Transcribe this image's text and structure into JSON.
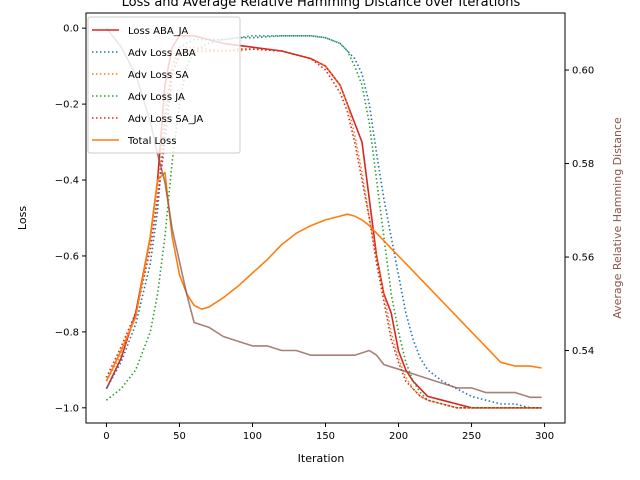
{
  "chart_data": {
    "type": "line",
    "title": "Loss and Average Relative Hamming Distance over Iterations",
    "xlabel": "Iteration",
    "ylabel": "Loss",
    "y2label": "Average Relative Hamming Distance",
    "xlim": [
      -14,
      314
    ],
    "ylim": [
      -1.04,
      0.04
    ],
    "y2lim": [
      0.5245,
      0.6122
    ],
    "xticks": [
      0,
      50,
      100,
      150,
      200,
      250,
      300
    ],
    "yticks": [
      -1.0,
      -0.8,
      -0.6,
      -0.4,
      -0.2,
      0.0
    ],
    "ytick_labels": [
      "−1.0",
      "−0.8",
      "−0.6",
      "−0.4",
      "−0.2",
      "0.0"
    ],
    "y2ticks": [
      0.54,
      0.56,
      0.58,
      0.6
    ],
    "legend_position": "upper-left",
    "colors": {
      "loss_aba_ja": "#d62728",
      "adv_aba": "#1f77b4",
      "adv_sa": "#ff7f0e",
      "adv_ja": "#2ca02c",
      "adv_sa_ja": "#d62728",
      "total": "#ff7f0e",
      "hamming": "#8c564b"
    },
    "series": [
      {
        "name": "Loss ABA_JA",
        "color": "#d62728",
        "style": "solid",
        "axis": "left",
        "x": [
          0,
          10,
          20,
          30,
          35,
          40,
          45,
          50,
          55,
          60,
          70,
          80,
          90,
          100,
          120,
          140,
          150,
          160,
          165,
          170,
          175,
          180,
          185,
          190,
          195,
          200,
          205,
          210,
          215,
          220,
          230,
          240,
          250,
          260,
          270,
          280,
          290,
          298
        ],
        "y": [
          -0.95,
          -0.87,
          -0.75,
          -0.55,
          -0.4,
          -0.15,
          -0.05,
          -0.02,
          -0.02,
          -0.02,
          -0.03,
          -0.04,
          -0.045,
          -0.05,
          -0.06,
          -0.08,
          -0.1,
          -0.15,
          -0.2,
          -0.25,
          -0.3,
          -0.45,
          -0.6,
          -0.7,
          -0.75,
          -0.85,
          -0.9,
          -0.93,
          -0.95,
          -0.97,
          -0.98,
          -0.99,
          -1.0,
          -1.0,
          -1.0,
          -1.0,
          -1.0,
          -1.0
        ]
      },
      {
        "name": "Adv Loss ABA",
        "color": "#1f77b4",
        "style": "dotted",
        "axis": "left",
        "x": [
          0,
          10,
          20,
          30,
          35,
          40,
          45,
          50,
          55,
          60,
          70,
          80,
          90,
          100,
          120,
          140,
          150,
          160,
          165,
          170,
          175,
          180,
          185,
          190,
          195,
          200,
          205,
          210,
          215,
          220,
          230,
          240,
          250,
          260,
          270,
          280,
          290,
          298
        ],
        "y": [
          -0.95,
          -0.88,
          -0.78,
          -0.62,
          -0.48,
          -0.25,
          -0.1,
          -0.05,
          -0.04,
          -0.03,
          -0.03,
          -0.03,
          -0.025,
          -0.025,
          -0.02,
          -0.02,
          -0.025,
          -0.04,
          -0.06,
          -0.08,
          -0.12,
          -0.2,
          -0.33,
          -0.45,
          -0.55,
          -0.65,
          -0.75,
          -0.82,
          -0.87,
          -0.9,
          -0.93,
          -0.95,
          -0.97,
          -0.98,
          -0.99,
          -0.99,
          -1.0,
          -1.0
        ]
      },
      {
        "name": "Adv Loss SA",
        "color": "#ff7f0e",
        "style": "dotted",
        "axis": "left",
        "x": [
          0,
          10,
          20,
          30,
          35,
          40,
          45,
          50,
          55,
          60,
          70,
          80,
          90,
          100,
          120,
          140,
          150,
          160,
          165,
          170,
          175,
          180,
          185,
          190,
          195,
          200,
          205,
          210,
          215,
          220,
          230,
          240,
          250,
          260,
          270,
          280,
          290,
          298
        ],
        "y": [
          -0.93,
          -0.86,
          -0.76,
          -0.58,
          -0.44,
          -0.22,
          -0.1,
          -0.06,
          -0.05,
          -0.05,
          -0.055,
          -0.06,
          -0.06,
          -0.055,
          -0.06,
          -0.08,
          -0.1,
          -0.15,
          -0.2,
          -0.28,
          -0.38,
          -0.5,
          -0.6,
          -0.7,
          -0.8,
          -0.87,
          -0.92,
          -0.95,
          -0.97,
          -0.98,
          -0.99,
          -1.0,
          -1.0,
          -1.0,
          -1.0,
          -1.0,
          -1.0,
          -1.0
        ]
      },
      {
        "name": "Adv Loss JA",
        "color": "#2ca02c",
        "style": "dotted",
        "axis": "left",
        "x": [
          0,
          10,
          20,
          30,
          35,
          40,
          45,
          50,
          55,
          60,
          70,
          80,
          90,
          100,
          120,
          140,
          150,
          160,
          165,
          170,
          175,
          180,
          185,
          190,
          195,
          200,
          205,
          210,
          215,
          220,
          230,
          240,
          250,
          260,
          270,
          280,
          290,
          298
        ],
        "y": [
          -0.98,
          -0.95,
          -0.9,
          -0.8,
          -0.7,
          -0.55,
          -0.35,
          -0.2,
          -0.1,
          -0.06,
          -0.04,
          -0.03,
          -0.025,
          -0.02,
          -0.02,
          -0.02,
          -0.025,
          -0.04,
          -0.06,
          -0.1,
          -0.15,
          -0.25,
          -0.4,
          -0.55,
          -0.7,
          -0.8,
          -0.88,
          -0.93,
          -0.96,
          -0.98,
          -0.99,
          -1.0,
          -1.0,
          -1.0,
          -1.0,
          -1.0,
          -1.0,
          -1.0
        ]
      },
      {
        "name": "Adv Loss SA_JA",
        "color": "#d62728",
        "style": "dotted",
        "axis": "left",
        "x": [
          0,
          10,
          20,
          30,
          35,
          40,
          45,
          50,
          55,
          60,
          70,
          80,
          90,
          100,
          120,
          140,
          150,
          160,
          165,
          170,
          175,
          180,
          185,
          190,
          195,
          200,
          205,
          210,
          215,
          220,
          230,
          240,
          250,
          260,
          270,
          280,
          290,
          298
        ],
        "y": [
          -0.92,
          -0.84,
          -0.75,
          -0.58,
          -0.45,
          -0.3,
          -0.12,
          -0.07,
          -0.06,
          -0.06,
          -0.06,
          -0.06,
          -0.055,
          -0.055,
          -0.06,
          -0.08,
          -0.11,
          -0.17,
          -0.22,
          -0.3,
          -0.4,
          -0.5,
          -0.62,
          -0.72,
          -0.82,
          -0.88,
          -0.93,
          -0.95,
          -0.97,
          -0.98,
          -0.99,
          -1.0,
          -1.0,
          -1.0,
          -1.0,
          -1.0,
          -1.0,
          -1.0
        ]
      },
      {
        "name": "Total Loss",
        "color": "#ff7f0e",
        "style": "solid",
        "axis": "left",
        "x": [
          0,
          10,
          20,
          30,
          35,
          40,
          45,
          50,
          55,
          60,
          65,
          70,
          80,
          90,
          100,
          110,
          120,
          130,
          140,
          150,
          160,
          165,
          170,
          175,
          180,
          185,
          190,
          195,
          200,
          210,
          220,
          230,
          240,
          250,
          260,
          270,
          280,
          290,
          298
        ],
        "y": [
          -0.93,
          -0.85,
          -0.76,
          -0.55,
          -0.4,
          -0.38,
          -0.55,
          -0.65,
          -0.7,
          -0.73,
          -0.74,
          -0.735,
          -0.71,
          -0.68,
          -0.645,
          -0.61,
          -0.57,
          -0.54,
          -0.52,
          -0.505,
          -0.495,
          -0.49,
          -0.495,
          -0.505,
          -0.52,
          -0.54,
          -0.56,
          -0.58,
          -0.6,
          -0.64,
          -0.68,
          -0.72,
          -0.76,
          -0.8,
          -0.84,
          -0.88,
          -0.89,
          -0.89,
          -0.895
        ]
      },
      {
        "name": "",
        "color": "#8c564b",
        "style": "solid",
        "axis": "right",
        "x": [
          0,
          10,
          20,
          30,
          35,
          40,
          45,
          50,
          55,
          60,
          70,
          80,
          90,
          100,
          110,
          120,
          130,
          140,
          150,
          160,
          170,
          180,
          185,
          190,
          200,
          210,
          220,
          230,
          240,
          250,
          260,
          270,
          280,
          290,
          298
        ],
        "y": [
          0.609,
          0.605,
          0.599,
          0.589,
          0.582,
          0.576,
          0.566,
          0.559,
          0.552,
          0.546,
          0.545,
          0.543,
          0.542,
          0.541,
          0.541,
          0.54,
          0.54,
          0.539,
          0.539,
          0.539,
          0.539,
          0.54,
          0.539,
          0.537,
          0.536,
          0.535,
          0.534,
          0.533,
          0.532,
          0.532,
          0.531,
          0.531,
          0.531,
          0.53,
          0.53
        ]
      }
    ]
  }
}
